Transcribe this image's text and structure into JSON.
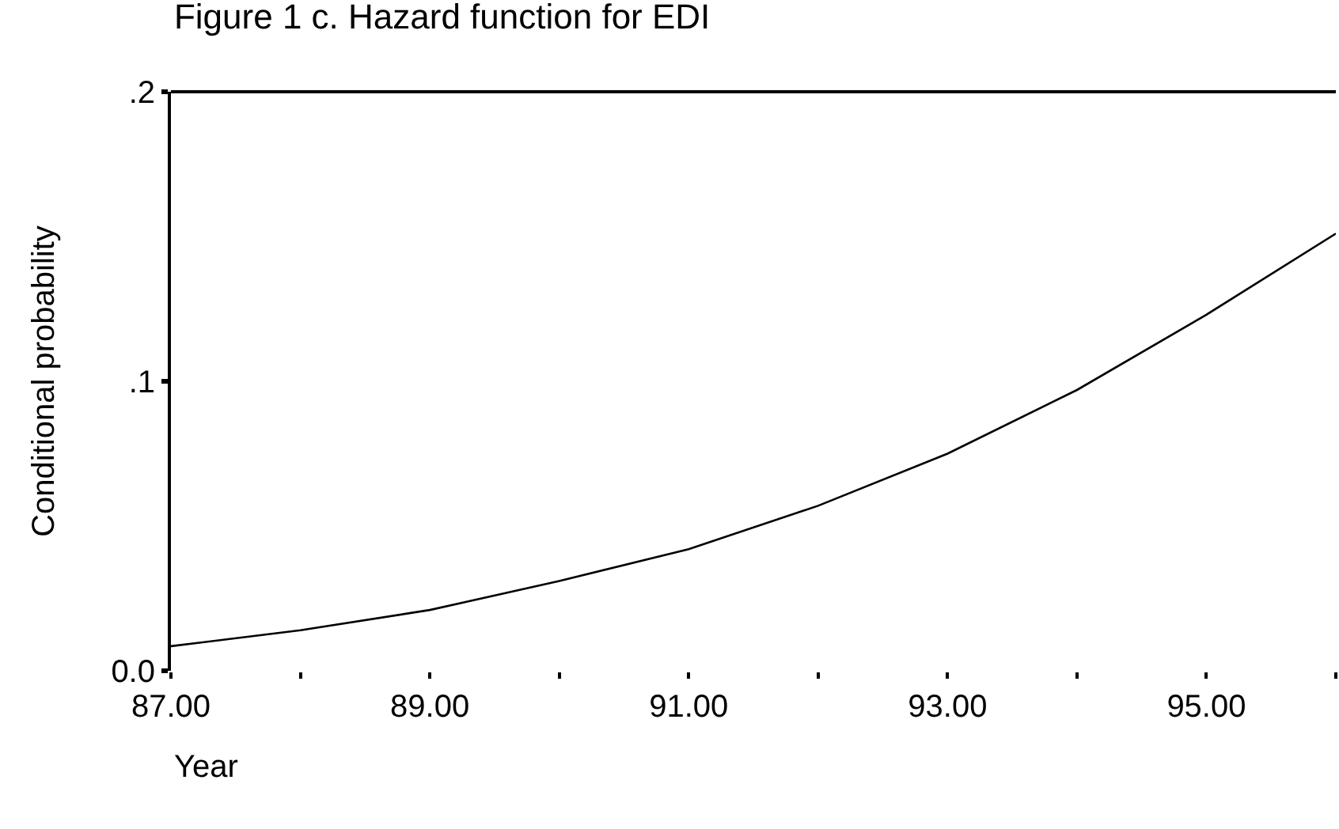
{
  "chart_data": {
    "type": "line",
    "title": "Figure 1 c. Hazard function for EDI",
    "xlabel": "Year",
    "ylabel": "Conditional probability",
    "x": [
      87,
      88,
      89,
      90,
      91,
      92,
      93,
      94,
      95,
      96
    ],
    "series": [
      {
        "color": "#000000",
        "values": [
          0.0085,
          0.014,
          0.021,
          0.031,
          0.042,
          0.057,
          0.075,
          0.097,
          0.123,
          0.151
        ]
      }
    ],
    "xlim": [
      87,
      96
    ],
    "xticks": [
      {
        "value": 87,
        "label": "87.00"
      },
      {
        "value": 88,
        "label": null
      },
      {
        "value": 89,
        "label": "89.00"
      },
      {
        "value": 90,
        "label": null
      },
      {
        "value": 91,
        "label": "91.00"
      },
      {
        "value": 92,
        "label": null
      },
      {
        "value": 93,
        "label": "93.00"
      },
      {
        "value": 94,
        "label": null
      },
      {
        "value": 95,
        "label": "95.00"
      },
      {
        "value": 96,
        "label": null
      }
    ],
    "ylim": [
      0,
      0.2
    ],
    "yticks": [
      {
        "value": 0,
        "label": "0.0"
      },
      {
        "value": 0.1,
        "label": ".1"
      },
      {
        "value": 0.2,
        "label": ".2"
      }
    ],
    "marker": "none",
    "line_style": "solid"
  }
}
